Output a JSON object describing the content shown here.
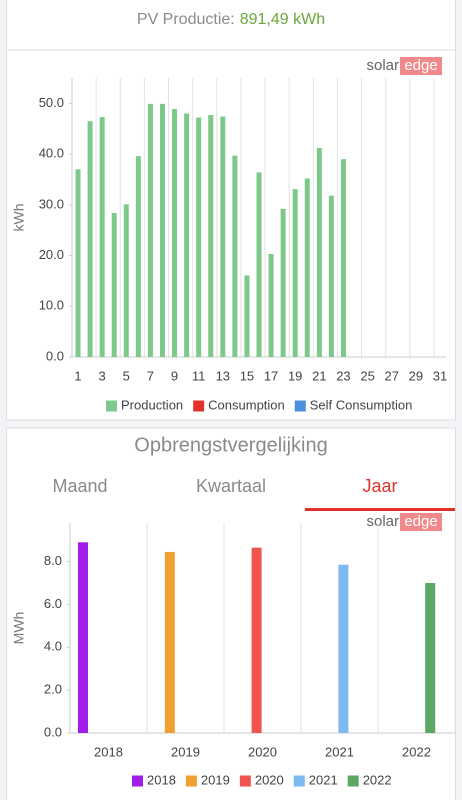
{
  "header": {
    "label": "PV Productie:",
    "value": "891,49 kWh"
  },
  "logo": {
    "left": "solar",
    "right": "edge"
  },
  "section_title": "Opbrengstvergelijking",
  "tabs": [
    {
      "label": "Maand",
      "active": false
    },
    {
      "label": "Kwartaal",
      "active": false
    },
    {
      "label": "Jaar",
      "active": true
    }
  ],
  "chart_data": [
    {
      "type": "bar",
      "y_label": "kWh",
      "grid": "x",
      "categories": [
        1,
        null,
        3,
        null,
        5,
        null,
        7,
        null,
        9,
        null,
        11,
        null,
        13,
        null,
        15,
        null,
        17,
        null,
        19,
        null,
        21,
        null,
        23,
        null,
        25,
        null,
        27,
        null,
        29,
        null,
        31
      ],
      "series": [
        {
          "name": "Production",
          "color": "#7dc98b",
          "values": [
            37.0,
            46.5,
            47.3,
            28.4,
            30.1,
            39.6,
            49.9,
            49.9,
            48.9,
            48.0,
            47.2,
            47.7,
            47.4,
            39.7,
            16.1,
            36.4,
            20.3,
            29.2,
            33.1,
            35.2,
            41.2,
            31.8,
            39.0,
            null,
            null,
            null,
            null,
            null,
            null,
            null,
            null
          ]
        },
        {
          "name": "Consumption",
          "color": "#e0322b",
          "values": [
            null,
            null,
            null,
            null,
            null,
            null,
            null,
            null,
            null,
            null,
            null,
            null,
            null,
            null,
            null,
            null,
            null,
            null,
            null,
            null,
            null,
            null,
            null,
            null,
            null,
            null,
            null,
            null,
            null,
            null,
            null
          ]
        },
        {
          "name": "Self Consumption",
          "color": "#4a8fe0",
          "values": [
            null,
            null,
            null,
            null,
            null,
            null,
            null,
            null,
            null,
            null,
            null,
            null,
            null,
            null,
            null,
            null,
            null,
            null,
            null,
            null,
            null,
            null,
            null,
            null,
            null,
            null,
            null,
            null,
            null,
            null,
            null
          ]
        }
      ],
      "ylim": [
        0,
        55
      ],
      "yticks": [
        {
          "value": 0,
          "label": "0.0"
        },
        {
          "value": 10,
          "label": "10.0"
        },
        {
          "value": 20,
          "label": "20.0"
        },
        {
          "value": 30,
          "label": "30.0"
        },
        {
          "value": 40,
          "label": "40.0"
        },
        {
          "value": 50,
          "label": "50.0"
        }
      ]
    },
    {
      "type": "bar",
      "y_label": "MWh",
      "grid": "x",
      "categories": [
        2018,
        2019,
        2020,
        2021,
        2022
      ],
      "series": [
        {
          "name": "2018",
          "color": "#a11de8",
          "values": [
            8.9,
            null,
            null,
            null,
            null
          ]
        },
        {
          "name": "2019",
          "color": "#f0a032",
          "values": [
            null,
            8.45,
            null,
            null,
            null
          ]
        },
        {
          "name": "2020",
          "color": "#ee5550",
          "values": [
            null,
            null,
            8.65,
            null,
            null
          ]
        },
        {
          "name": "2021",
          "color": "#7cb9f0",
          "values": [
            null,
            null,
            null,
            7.85,
            null
          ]
        },
        {
          "name": "2022",
          "color": "#5aa864",
          "values": [
            null,
            null,
            null,
            null,
            7.0
          ]
        }
      ],
      "ylim": [
        0,
        9.8
      ],
      "yticks": [
        {
          "value": 0,
          "label": "0.0"
        },
        {
          "value": 2,
          "label": "2.0"
        },
        {
          "value": 4,
          "label": "4.0"
        },
        {
          "value": 6,
          "label": "6.0"
        },
        {
          "value": 8,
          "label": "8.0"
        }
      ]
    }
  ]
}
